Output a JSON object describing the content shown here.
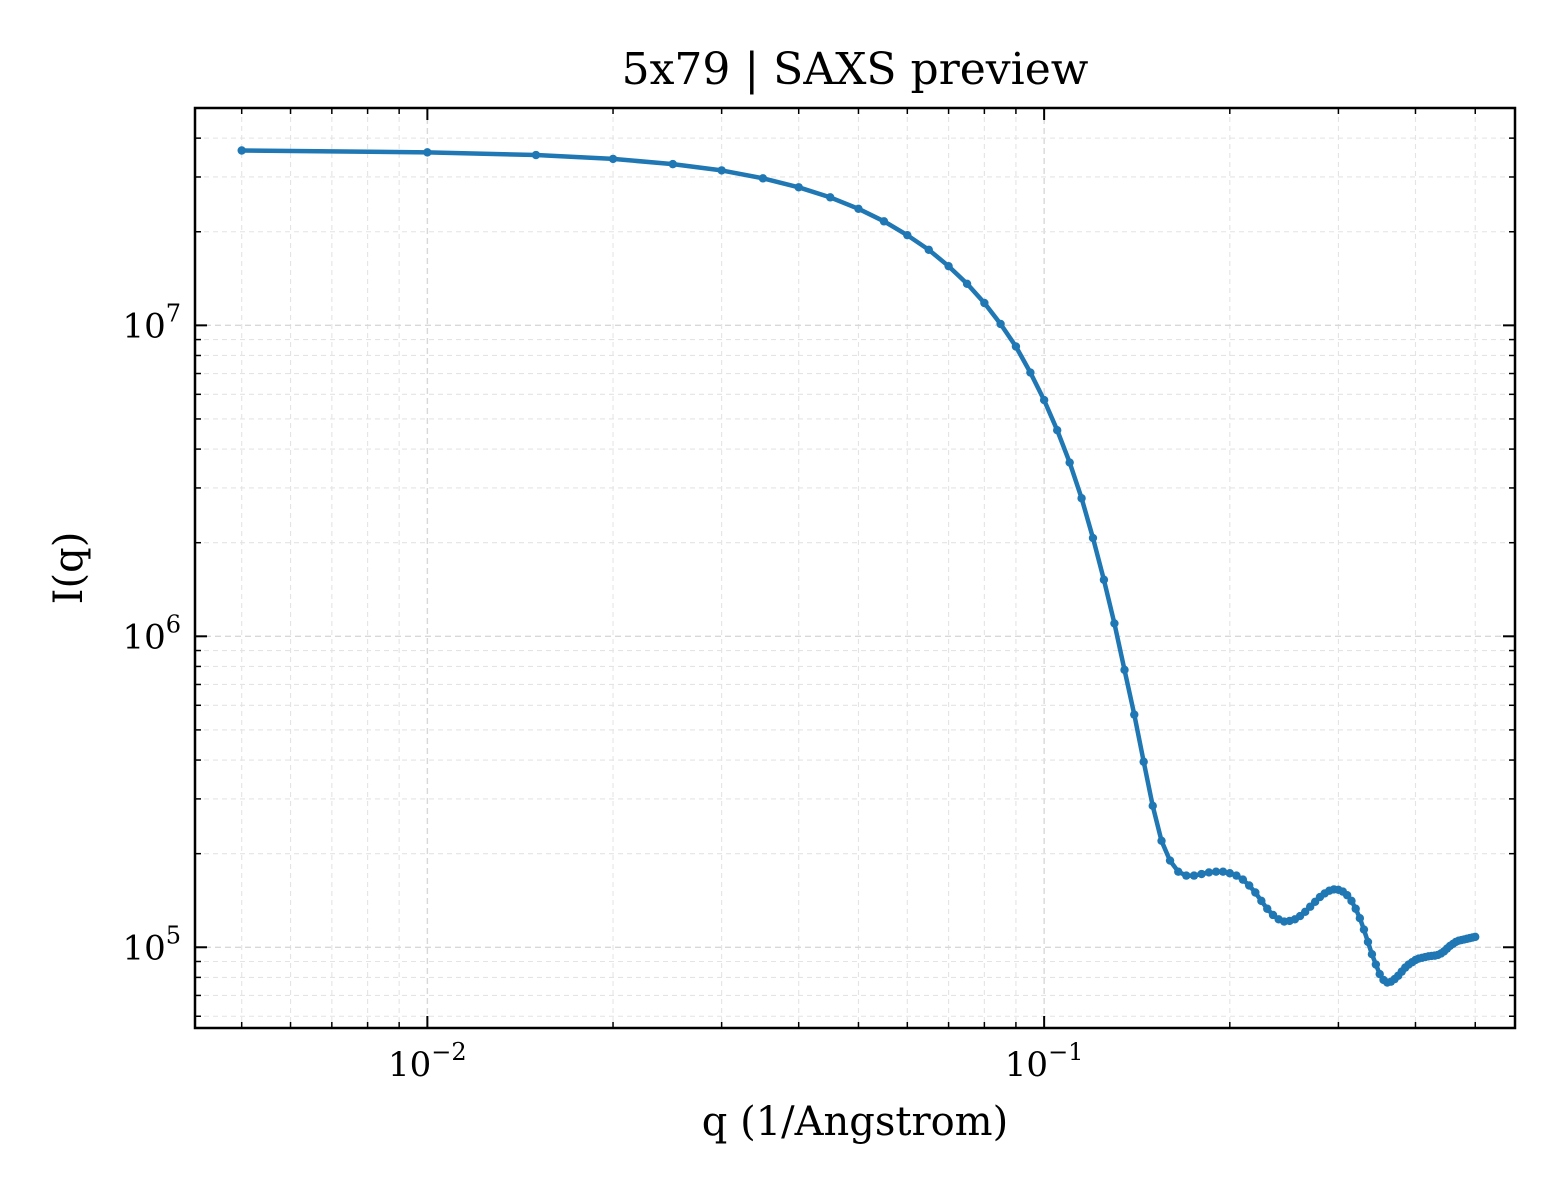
{
  "chart_data": {
    "type": "line",
    "title": "5x79 | SAXS preview",
    "xlabel": "q (1/Angstrom)",
    "ylabel": "I(q)",
    "xscale": "log",
    "yscale": "log",
    "xlim": [
      0.0042,
      0.58
    ],
    "ylim": [
      55000,
      50000000
    ],
    "grid": true,
    "x_ticks": [
      {
        "value": 0.01,
        "base": "10",
        "exp": "−2"
      },
      {
        "value": 0.1,
        "base": "10",
        "exp": "−1"
      }
    ],
    "y_ticks": [
      {
        "value": 100000,
        "base": "10",
        "exp": "5"
      },
      {
        "value": 1000000,
        "base": "10",
        "exp": "6"
      },
      {
        "value": 10000000,
        "base": "10",
        "exp": "7"
      }
    ],
    "series": [
      {
        "color": "#1f77b4",
        "marker": "circle",
        "x": [
          0.005,
          0.01,
          0.015,
          0.02,
          0.025,
          0.03,
          0.035,
          0.04,
          0.045,
          0.05,
          0.055,
          0.06,
          0.065,
          0.07,
          0.075,
          0.08,
          0.085,
          0.09,
          0.095,
          0.1,
          0.105,
          0.11,
          0.115,
          0.12,
          0.125,
          0.13,
          0.135,
          0.14,
          0.145,
          0.15,
          0.155,
          0.16,
          0.165,
          0.17,
          0.175,
          0.18,
          0.185,
          0.19,
          0.195,
          0.2,
          0.205,
          0.21,
          0.215,
          0.22,
          0.225,
          0.23,
          0.235,
          0.24,
          0.245,
          0.25,
          0.255,
          0.26,
          0.265,
          0.27,
          0.275,
          0.28,
          0.285,
          0.29,
          0.295,
          0.3,
          0.305,
          0.31,
          0.315,
          0.32,
          0.325,
          0.33,
          0.335,
          0.34,
          0.345,
          0.35,
          0.355,
          0.36,
          0.365,
          0.37,
          0.375,
          0.38,
          0.385,
          0.39,
          0.395,
          0.4,
          0.405,
          0.41,
          0.415,
          0.42,
          0.425,
          0.43,
          0.435,
          0.44,
          0.445,
          0.45,
          0.455,
          0.46,
          0.465,
          0.47,
          0.475,
          0.48,
          0.485,
          0.49,
          0.495,
          0.5
        ],
        "y": [
          36500000,
          36000000,
          35300000,
          34300000,
          33000000,
          31500000,
          29700000,
          27800000,
          25800000,
          23700000,
          21600000,
          19500000,
          17500000,
          15500000,
          13600000,
          11800000,
          10100000,
          8550000,
          7050000,
          5750000,
          4600000,
          3620000,
          2780000,
          2070000,
          1520000,
          1100000,
          780000,
          560000,
          395000,
          285000,
          220000,
          190000,
          175000,
          170000,
          170000,
          172000,
          174000,
          175000,
          175000,
          173000,
          170000,
          165000,
          158000,
          150000,
          141000,
          133000,
          127000,
          123000,
          121000,
          121500,
          123000,
          126000,
          130000,
          135000,
          140000,
          145000,
          149000,
          152000,
          153500,
          153000,
          151000,
          147000,
          141000,
          133000,
          124000,
          114000,
          104000,
          95000,
          88000,
          82000,
          78500,
          77000,
          77500,
          79000,
          81000,
          83500,
          86000,
          88000,
          89500,
          91000,
          92000,
          92500,
          93000,
          93500,
          93800,
          94000,
          94500,
          95500,
          97000,
          99000,
          101000,
          102500,
          104000,
          105000,
          105500,
          106000,
          106500,
          107000,
          107500,
          108000
        ]
      }
    ]
  }
}
